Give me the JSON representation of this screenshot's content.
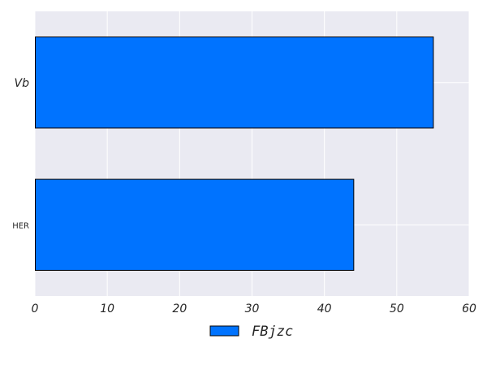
{
  "chart_data": {
    "type": "bar",
    "orientation": "horizontal",
    "categories": [
      "Vb",
      "HER"
    ],
    "series": [
      {
        "name": "FBjzc",
        "values": [
          55,
          44
        ]
      }
    ],
    "title": "",
    "xlabel": "",
    "ylabel": "",
    "xlim": [
      0,
      60
    ],
    "xticks": [
      0,
      10,
      20,
      30,
      40,
      50,
      60
    ],
    "grid": true,
    "legend_position": "bottom-center",
    "colors": {
      "background": "#eaeaf2",
      "grid": "#ffffff",
      "bar": "#0073ff",
      "bar_edge": "#000000"
    }
  }
}
